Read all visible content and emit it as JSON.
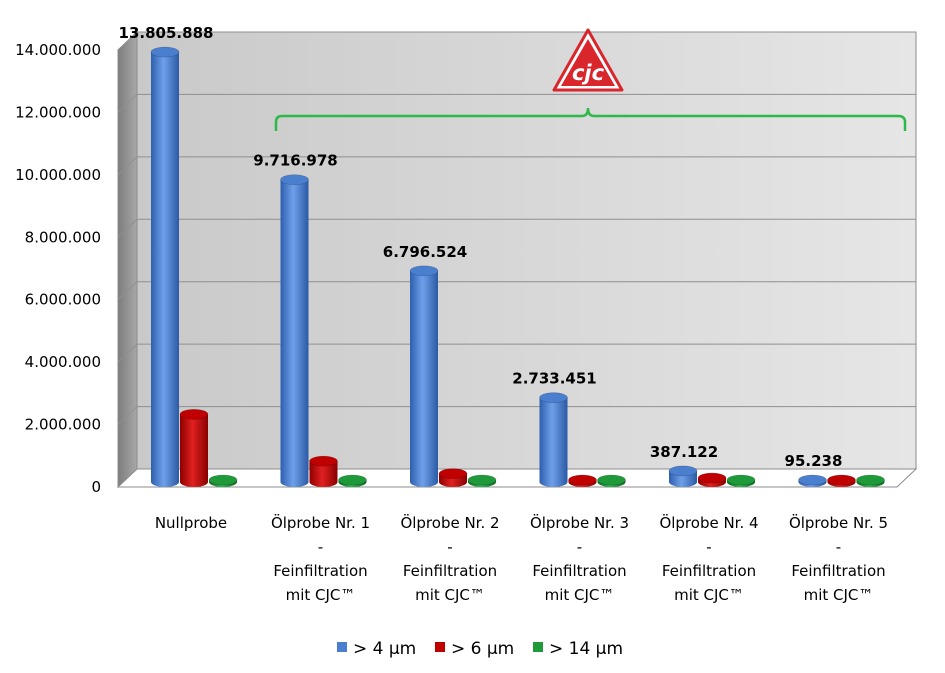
{
  "chart_data": {
    "type": "bar",
    "categories": [
      [
        "Nullprobe"
      ],
      [
        "Ölprobe Nr. 1",
        "-",
        "Feinfiltration",
        "mit CJC™"
      ],
      [
        "Ölprobe Nr. 2",
        "-",
        "Feinfiltration",
        "mit CJC™"
      ],
      [
        "Ölprobe Nr. 3",
        "-",
        "Feinfiltration",
        "mit CJC™"
      ],
      [
        "Ölprobe Nr. 4",
        "-",
        "Feinfiltration",
        "mit CJC™"
      ],
      [
        "Ölprobe Nr. 5",
        "-",
        "Feinfiltration",
        "mit CJC™"
      ]
    ],
    "series": [
      {
        "name": "> 4 µm",
        "color": "#4a7fd0",
        "values": [
          13805888,
          9716978,
          6796524,
          2733451,
          387122,
          95238
        ]
      },
      {
        "name": "> 6 µm",
        "color": "#c00000",
        "values": [
          2200000,
          700000,
          300000,
          60000,
          160000,
          80000
        ]
      },
      {
        "name": "> 14 µm",
        "color": "#1f9a3a",
        "values": [
          40000,
          30000,
          30000,
          20000,
          20000,
          20000
        ]
      }
    ],
    "data_labels": [
      "13.805.888",
      "9.716.978",
      "6.796.524",
      "2.733.451",
      "387.122",
      "95.238"
    ],
    "y_ticks": [
      "0",
      "2.000.000",
      "4.000.000",
      "6.000.000",
      "8.000.000",
      "10.000.000",
      "12.000.000",
      "14.000.000"
    ],
    "ylim": [
      0,
      14000000
    ],
    "grid": true,
    "legend_position": "bottom",
    "annotation": {
      "logo_text": "cjc",
      "logo_color": "#d9262c",
      "bracket_color": "#2db84a"
    }
  }
}
